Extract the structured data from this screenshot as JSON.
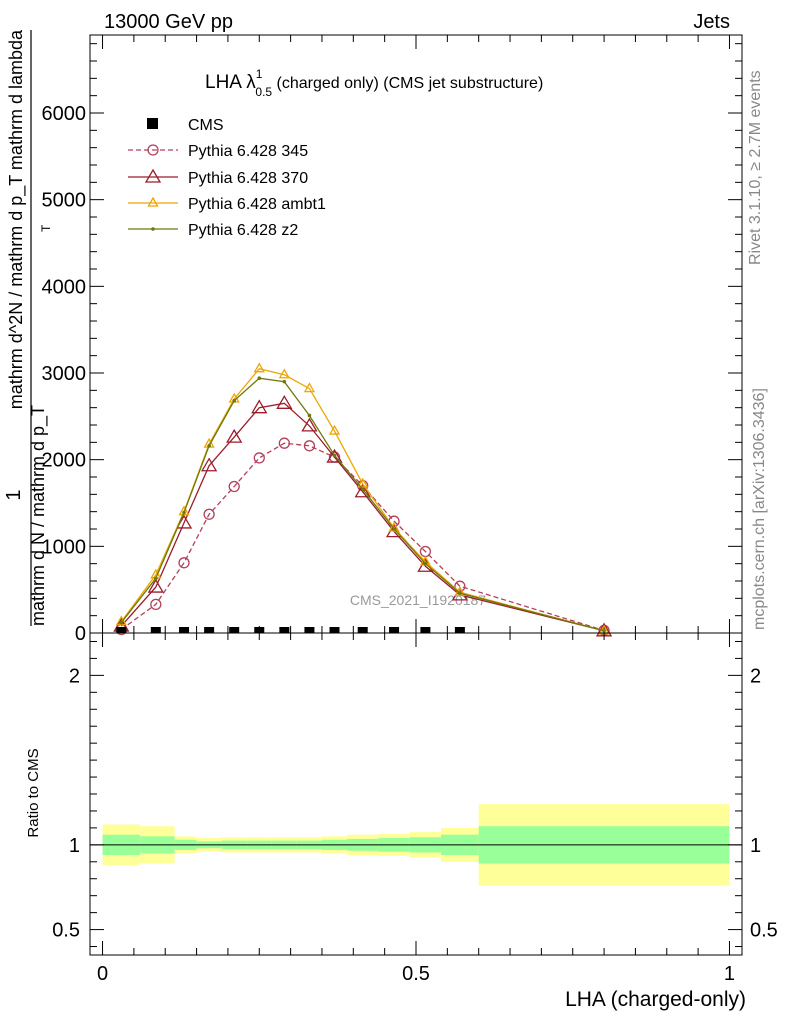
{
  "header": {
    "left": "13000 GeV pp",
    "right": "Jets"
  },
  "side_labels": {
    "rivet": "Rivet 3.1.10, ≥ 2.7M events",
    "mcplots": "mcplots.cern.ch [arXiv:1306.3436]"
  },
  "watermark": "CMS_2021_I1920187",
  "chart_data": [
    {
      "type": "line",
      "title_main": "LHA λ",
      "title_sup": "1",
      "title_sub": "0.5",
      "title_rest": " (charged only) (CMS jet substructure)",
      "ylabel": {
        "numerator_top": "1",
        "numerator_bot": "mathrm d N / mathrm d p_T",
        "denominator": "mathrm d^2N / mathrm d p_T mathrm d lambda",
        "denominator_sub": "T"
      },
      "xlim": [
        -0.02,
        1.02
      ],
      "ylim": [
        0,
        6900
      ],
      "yticks": [
        0,
        1000,
        2000,
        3000,
        4000,
        5000,
        6000
      ],
      "ytick_labels": [
        "0",
        "1000",
        "2000",
        "3000",
        "4000",
        "5000",
        "6000"
      ],
      "legend_position": "top-left",
      "cms": {
        "name": "CMS",
        "x": [
          0.03,
          0.085,
          0.13,
          0.17,
          0.21,
          0.25,
          0.29,
          0.33,
          0.37,
          0.415,
          0.465,
          0.515,
          0.57
        ],
        "y": [
          0,
          0,
          0,
          0,
          0,
          0,
          0,
          0,
          0,
          0,
          0,
          0,
          0
        ]
      },
      "series": [
        {
          "name": "Pythia 6.428 345",
          "color": "#b3405a",
          "dashed": true,
          "marker": "circle",
          "x": [
            0.03,
            0.085,
            0.13,
            0.17,
            0.21,
            0.25,
            0.29,
            0.33,
            0.37,
            0.415,
            0.465,
            0.515,
            0.57,
            0.8
          ],
          "y": [
            40,
            330,
            810,
            1370,
            1690,
            2020,
            2190,
            2160,
            2030,
            1700,
            1290,
            940,
            540,
            30
          ]
        },
        {
          "name": "Pythia 6.428 370",
          "color": "#9b1c2b",
          "dashed": false,
          "marker": "triangle",
          "x": [
            0.03,
            0.085,
            0.13,
            0.17,
            0.21,
            0.25,
            0.29,
            0.33,
            0.37,
            0.415,
            0.465,
            0.515,
            0.57,
            0.8
          ],
          "y": [
            80,
            530,
            1270,
            1930,
            2260,
            2600,
            2650,
            2390,
            2030,
            1630,
            1170,
            770,
            440,
            25
          ]
        },
        {
          "name": "Pythia 6.428 ambt1",
          "color": "#f0a500",
          "dashed": false,
          "marker": "triangle-small",
          "x": [
            0.03,
            0.085,
            0.13,
            0.17,
            0.21,
            0.25,
            0.29,
            0.33,
            0.37,
            0.415,
            0.465,
            0.515,
            0.57,
            0.8
          ],
          "y": [
            130,
            670,
            1400,
            2180,
            2700,
            3050,
            2980,
            2820,
            2330,
            1720,
            1210,
            820,
            470,
            25
          ]
        },
        {
          "name": "Pythia 6.428 z2",
          "color": "#6b7a0a",
          "dashed": false,
          "marker": "dot",
          "x": [
            0.03,
            0.085,
            0.13,
            0.17,
            0.21,
            0.25,
            0.29,
            0.33,
            0.37,
            0.415,
            0.465,
            0.515,
            0.57,
            0.8
          ],
          "y": [
            120,
            630,
            1390,
            2160,
            2680,
            2940,
            2900,
            2510,
            2050,
            1660,
            1200,
            800,
            460,
            25
          ]
        }
      ]
    },
    {
      "type": "area",
      "ylabel": "Ratio to CMS",
      "xlabel": "LHA (charged-only)",
      "xlim": [
        -0.02,
        1.02
      ],
      "ylim": [
        0.35,
        2.25
      ],
      "yticks": [
        0.5,
        1,
        2
      ],
      "ytick_labels": [
        "0.5",
        "1",
        "2"
      ],
      "xticks": [
        0,
        0.5,
        1
      ],
      "xtick_labels": [
        "0",
        "0.5",
        "1"
      ],
      "reference_line": 1,
      "bands": [
        {
          "x0": 0.0,
          "x1": 0.06,
          "inner": [
            0.94,
            1.06
          ],
          "outer": [
            0.88,
            1.12
          ]
        },
        {
          "x0": 0.06,
          "x1": 0.115,
          "inner": [
            0.95,
            1.05
          ],
          "outer": [
            0.89,
            1.11
          ]
        },
        {
          "x0": 0.115,
          "x1": 0.15,
          "inner": [
            0.97,
            1.03
          ],
          "outer": [
            0.95,
            1.05
          ]
        },
        {
          "x0": 0.15,
          "x1": 0.19,
          "inner": [
            0.98,
            1.02
          ],
          "outer": [
            0.96,
            1.04
          ]
        },
        {
          "x0": 0.19,
          "x1": 0.23,
          "inner": [
            0.975,
            1.025
          ],
          "outer": [
            0.955,
            1.045
          ]
        },
        {
          "x0": 0.23,
          "x1": 0.27,
          "inner": [
            0.975,
            1.025
          ],
          "outer": [
            0.955,
            1.045
          ]
        },
        {
          "x0": 0.27,
          "x1": 0.31,
          "inner": [
            0.975,
            1.025
          ],
          "outer": [
            0.955,
            1.045
          ]
        },
        {
          "x0": 0.31,
          "x1": 0.35,
          "inner": [
            0.975,
            1.025
          ],
          "outer": [
            0.955,
            1.045
          ]
        },
        {
          "x0": 0.35,
          "x1": 0.39,
          "inner": [
            0.97,
            1.03
          ],
          "outer": [
            0.95,
            1.05
          ]
        },
        {
          "x0": 0.39,
          "x1": 0.44,
          "inner": [
            0.965,
            1.035
          ],
          "outer": [
            0.94,
            1.06
          ]
        },
        {
          "x0": 0.44,
          "x1": 0.49,
          "inner": [
            0.96,
            1.04
          ],
          "outer": [
            0.935,
            1.065
          ]
        },
        {
          "x0": 0.49,
          "x1": 0.54,
          "inner": [
            0.955,
            1.045
          ],
          "outer": [
            0.925,
            1.075
          ]
        },
        {
          "x0": 0.54,
          "x1": 0.6,
          "inner": [
            0.94,
            1.06
          ],
          "outer": [
            0.9,
            1.1
          ]
        },
        {
          "x0": 0.6,
          "x1": 1.0,
          "inner": [
            0.89,
            1.11
          ],
          "outer": [
            0.76,
            1.24
          ]
        }
      ],
      "band_colors": {
        "inner": "#99ff99",
        "outer": "#ffff99"
      }
    }
  ]
}
